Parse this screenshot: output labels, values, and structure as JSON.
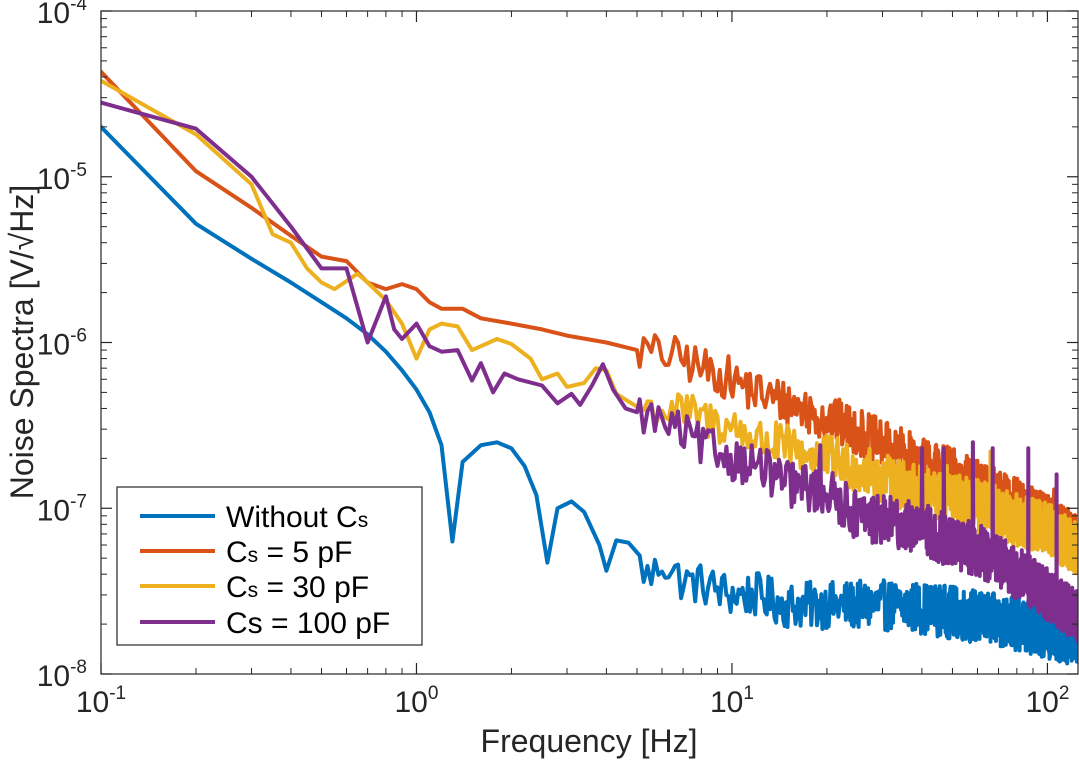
{
  "chart_data": {
    "type": "line",
    "xlabel": "Frequency [Hz]",
    "ylabel": "Noise Spectra [V/√Hz]",
    "xscale": "log",
    "yscale": "log",
    "xlim": [
      0.1,
      125
    ],
    "ylim": [
      1e-08,
      0.0001
    ],
    "grid": false,
    "legend_position": "bottom-left",
    "x_ticks": [
      {
        "base": "10",
        "exp": "-1",
        "value": 0.1
      },
      {
        "base": "10",
        "exp": "0",
        "value": 1
      },
      {
        "base": "10",
        "exp": "1",
        "value": 10
      },
      {
        "base": "10",
        "exp": "2",
        "value": 100
      }
    ],
    "y_ticks": [
      {
        "base": "10",
        "exp": "-8",
        "value": 1e-08
      },
      {
        "base": "10",
        "exp": "-7",
        "value": 1e-07
      },
      {
        "base": "10",
        "exp": "-6",
        "value": 1e-06
      },
      {
        "base": "10",
        "exp": "-5",
        "value": 1e-05
      },
      {
        "base": "10",
        "exp": "-4",
        "value": 0.0001
      }
    ],
    "series": [
      {
        "name": "Without Cs",
        "legend_main": "Without C",
        "legend_sub": "s",
        "legend_rest": "",
        "color": "#0072BD",
        "points": [
          [
            0.1,
            2e-05
          ],
          [
            0.2,
            5.2e-06
          ],
          [
            0.3,
            3.2e-06
          ],
          [
            0.4,
            2.3e-06
          ],
          [
            0.5,
            1.75e-06
          ],
          [
            0.6,
            1.4e-06
          ],
          [
            0.7,
            1.12e-06
          ],
          [
            0.8,
            8.8e-07
          ],
          [
            0.9,
            6.8e-07
          ],
          [
            1.0,
            5.2e-07
          ],
          [
            1.1,
            3.8e-07
          ],
          [
            1.2,
            2.4e-07
          ],
          [
            1.3,
            6.3e-08
          ],
          [
            1.4,
            1.9e-07
          ],
          [
            1.6,
            2.4e-07
          ],
          [
            1.8,
            2.5e-07
          ],
          [
            2.0,
            2.3e-07
          ],
          [
            2.2,
            1.8e-07
          ],
          [
            2.4,
            1.2e-07
          ],
          [
            2.6,
            4.7e-08
          ],
          [
            2.8,
            1e-07
          ],
          [
            3.1,
            1.1e-07
          ],
          [
            3.4,
            9.5e-08
          ],
          [
            3.8,
            6e-08
          ],
          [
            4.0,
            4.2e-08
          ],
          [
            4.3,
            6.4e-08
          ],
          [
            4.7,
            6.2e-08
          ],
          [
            5.1,
            4.6e-08
          ],
          [
            5.5,
            3.7e-08
          ],
          [
            6.0,
            4.8e-08
          ],
          [
            7.0,
            3.6e-08
          ],
          [
            8.0,
            3.5e-08
          ],
          [
            10.0,
            3e-08
          ],
          [
            12.0,
            3e-08
          ],
          [
            15.0,
            2.6e-08
          ],
          [
            20.0,
            2.6e-08
          ],
          [
            30.0,
            2.6e-08
          ],
          [
            40.0,
            2.5e-08
          ],
          [
            50.0,
            2.35e-08
          ],
          [
            60.0,
            2.2e-08
          ],
          [
            70.0,
            2.1e-08
          ],
          [
            80.0,
            2e-08
          ],
          [
            100.0,
            1.8e-08
          ],
          [
            125.0,
            1.6e-08
          ]
        ],
        "spikes": [
          [
            58,
            3.2e-08
          ],
          [
            65,
            2.8e-08
          ],
          [
            70,
            2.6e-08
          ]
        ]
      },
      {
        "name": "Cs = 5 pF",
        "legend_main": "C",
        "legend_sub": "s",
        "legend_rest": " = 5 pF",
        "color": "#D95319",
        "points": [
          [
            0.1,
            4.3e-05
          ],
          [
            0.2,
            1.08e-05
          ],
          [
            0.3,
            6.5e-06
          ],
          [
            0.4,
            4.4e-06
          ],
          [
            0.5,
            3.3e-06
          ],
          [
            0.6,
            3.1e-06
          ],
          [
            0.7,
            2.3e-06
          ],
          [
            0.8,
            2.1e-06
          ],
          [
            0.9,
            2.25e-06
          ],
          [
            1.0,
            2.1e-06
          ],
          [
            1.1,
            1.75e-06
          ],
          [
            1.2,
            1.6e-06
          ],
          [
            1.4,
            1.6e-06
          ],
          [
            1.6,
            1.4e-06
          ],
          [
            2.0,
            1.3e-06
          ],
          [
            2.5,
            1.2e-06
          ],
          [
            3.0,
            1.1e-06
          ],
          [
            4.0,
            1e-06
          ],
          [
            5.0,
            9e-07
          ],
          [
            6.0,
            8.5e-07
          ],
          [
            7.0,
            8e-07
          ],
          [
            8.0,
            7e-07
          ],
          [
            10.0,
            6e-07
          ],
          [
            12.0,
            5e-07
          ],
          [
            15.0,
            4.3e-07
          ],
          [
            20.0,
            3.5e-07
          ],
          [
            25.0,
            2.9e-07
          ],
          [
            30.0,
            2.4e-07
          ],
          [
            40.0,
            1.9e-07
          ],
          [
            50.0,
            1.6e-07
          ],
          [
            60.0,
            1.35e-07
          ],
          [
            70.0,
            1.2e-07
          ],
          [
            80.0,
            1.05e-07
          ],
          [
            100.0,
            8.5e-08
          ],
          [
            125.0,
            6.2e-08
          ]
        ],
        "spikes": [
          [
            40,
            2.2e-07
          ],
          [
            58,
            1.9e-07
          ],
          [
            80,
            1.5e-07
          ],
          [
            105,
            1.3e-07
          ]
        ]
      },
      {
        "name": "Cs = 30 pF",
        "legend_main": "C",
        "legend_sub": "s",
        "legend_rest": " = 30 pF",
        "color": "#EDB120",
        "points": [
          [
            0.1,
            3.8e-05
          ],
          [
            0.2,
            1.8e-05
          ],
          [
            0.3,
            9e-06
          ],
          [
            0.35,
            4.5e-06
          ],
          [
            0.4,
            4e-06
          ],
          [
            0.45,
            2.8e-06
          ],
          [
            0.5,
            2.3e-06
          ],
          [
            0.55,
            2.1e-06
          ],
          [
            0.65,
            2.6e-06
          ],
          [
            0.7,
            2.3e-06
          ],
          [
            0.8,
            1.8e-06
          ],
          [
            0.9,
            1.3e-06
          ],
          [
            1.0,
            8e-07
          ],
          [
            1.1,
            1.2e-06
          ],
          [
            1.2,
            1.3e-06
          ],
          [
            1.35,
            1.25e-06
          ],
          [
            1.5,
            9e-07
          ],
          [
            1.6,
            9.5e-07
          ],
          [
            1.8,
            1.05e-06
          ],
          [
            2.0,
            9.8e-07
          ],
          [
            2.3,
            8e-07
          ],
          [
            2.5,
            6e-07
          ],
          [
            2.8,
            6.5e-07
          ],
          [
            3.0,
            5.4e-07
          ],
          [
            3.4,
            5.7e-07
          ],
          [
            3.7,
            7e-07
          ],
          [
            4.0,
            6.8e-07
          ],
          [
            4.3,
            4.9e-07
          ],
          [
            5.0,
            4.1e-07
          ],
          [
            6.0,
            3.9e-07
          ],
          [
            7.0,
            3.8e-07
          ],
          [
            8.0,
            3.5e-07
          ],
          [
            10.0,
            3.1e-07
          ],
          [
            12.0,
            2.6e-07
          ],
          [
            15.0,
            2.3e-07
          ],
          [
            20.0,
            2e-07
          ],
          [
            25.0,
            1.75e-07
          ],
          [
            30.0,
            1.5e-07
          ],
          [
            40.0,
            1.25e-07
          ],
          [
            50.0,
            1.12e-07
          ],
          [
            60.0,
            1.03e-07
          ],
          [
            70.0,
            9.4e-08
          ],
          [
            80.0,
            8.5e-08
          ],
          [
            100.0,
            7.5e-08
          ],
          [
            125.0,
            5.6e-08
          ]
        ],
        "spikes": [
          [
            35,
            1.9e-07
          ],
          [
            48,
            1.8e-07
          ],
          [
            66,
            2.2e-07
          ]
        ]
      },
      {
        "name": "Cs = 100 pF",
        "legend_main": "Cs = 100 pF",
        "legend_sub": "",
        "legend_rest": "",
        "color": "#7E2F8E",
        "points": [
          [
            0.1,
            2.8e-05
          ],
          [
            0.2,
            1.95e-05
          ],
          [
            0.3,
            1e-05
          ],
          [
            0.4,
            5e-06
          ],
          [
            0.5,
            2.8e-06
          ],
          [
            0.6,
            2.8e-06
          ],
          [
            0.7,
            1e-06
          ],
          [
            0.8,
            1.9e-06
          ],
          [
            0.85,
            1.2e-06
          ],
          [
            0.9,
            1.05e-06
          ],
          [
            1.0,
            1.3e-06
          ],
          [
            1.1,
            9.5e-07
          ],
          [
            1.2,
            8.8e-07
          ],
          [
            1.35,
            9e-07
          ],
          [
            1.5,
            5.9e-07
          ],
          [
            1.6,
            7.5e-07
          ],
          [
            1.75,
            5e-07
          ],
          [
            1.9,
            6.5e-07
          ],
          [
            2.1,
            6e-07
          ],
          [
            2.5,
            5.5e-07
          ],
          [
            2.8,
            4.3e-07
          ],
          [
            3.1,
            4.9e-07
          ],
          [
            3.3,
            4.2e-07
          ],
          [
            3.6,
            5.5e-07
          ],
          [
            3.9,
            7.4e-07
          ],
          [
            4.2,
            5.2e-07
          ],
          [
            4.6,
            4e-07
          ],
          [
            5.0,
            3.8e-07
          ],
          [
            6.0,
            3.3e-07
          ],
          [
            7.0,
            2.8e-07
          ],
          [
            8.0,
            2.4e-07
          ],
          [
            10.0,
            2e-07
          ],
          [
            12.0,
            1.8e-07
          ],
          [
            15.0,
            1.4e-07
          ],
          [
            20.0,
            1.25e-07
          ],
          [
            25.0,
            9e-08
          ],
          [
            30.0,
            8.5e-08
          ],
          [
            40.0,
            7.5e-08
          ],
          [
            50.0,
            6.2e-08
          ],
          [
            60.0,
            5.6e-08
          ],
          [
            70.0,
            4.7e-08
          ],
          [
            80.0,
            4.1e-08
          ],
          [
            100.0,
            3e-08
          ],
          [
            125.0,
            2.2e-08
          ]
        ],
        "spikes": [
          [
            19,
            2.4e-07
          ],
          [
            22,
            1.3e-07
          ],
          [
            40,
            2.3e-07
          ],
          [
            47,
            2.3e-07
          ],
          [
            58,
            2.5e-07
          ],
          [
            67,
            2.3e-07
          ],
          [
            87,
            2.3e-07
          ],
          [
            107,
            1.6e-07
          ]
        ]
      }
    ]
  }
}
